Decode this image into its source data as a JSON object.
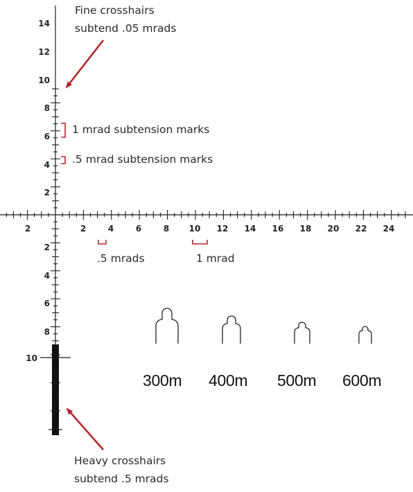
{
  "colors": {
    "reticle": "#1a1a1a",
    "annotation_accent": "#b3262b",
    "text": "#2a2a2a"
  },
  "annotations": {
    "fine_crosshairs": [
      "Fine crosshairs",
      "subtend .05 mrads"
    ],
    "mrad_marks": "1 mrad subtension marks",
    "half_mrad_marks": ".5 mrad subtension marks",
    "half_mrads_label": ".5 mrads",
    "one_mrad_label": "1 mrad",
    "heavy_crosshairs": [
      "Heavy crosshairs",
      "subtend .5 mrads"
    ]
  },
  "vertical_axis": {
    "up_labels": [
      "14",
      "12",
      "10",
      "8",
      "6",
      "4",
      "2"
    ],
    "down_labels": [
      "2",
      "4",
      "6",
      "8"
    ],
    "heavy_label": "10"
  },
  "horizontal_axis": {
    "left_labels": [
      "2"
    ],
    "right_labels": [
      "2",
      "4",
      "6",
      "8",
      "10",
      "12",
      "14",
      "16",
      "18",
      "20",
      "22",
      "24"
    ]
  },
  "range_marks": [
    "300m",
    "400m",
    "500m",
    "600m"
  ]
}
